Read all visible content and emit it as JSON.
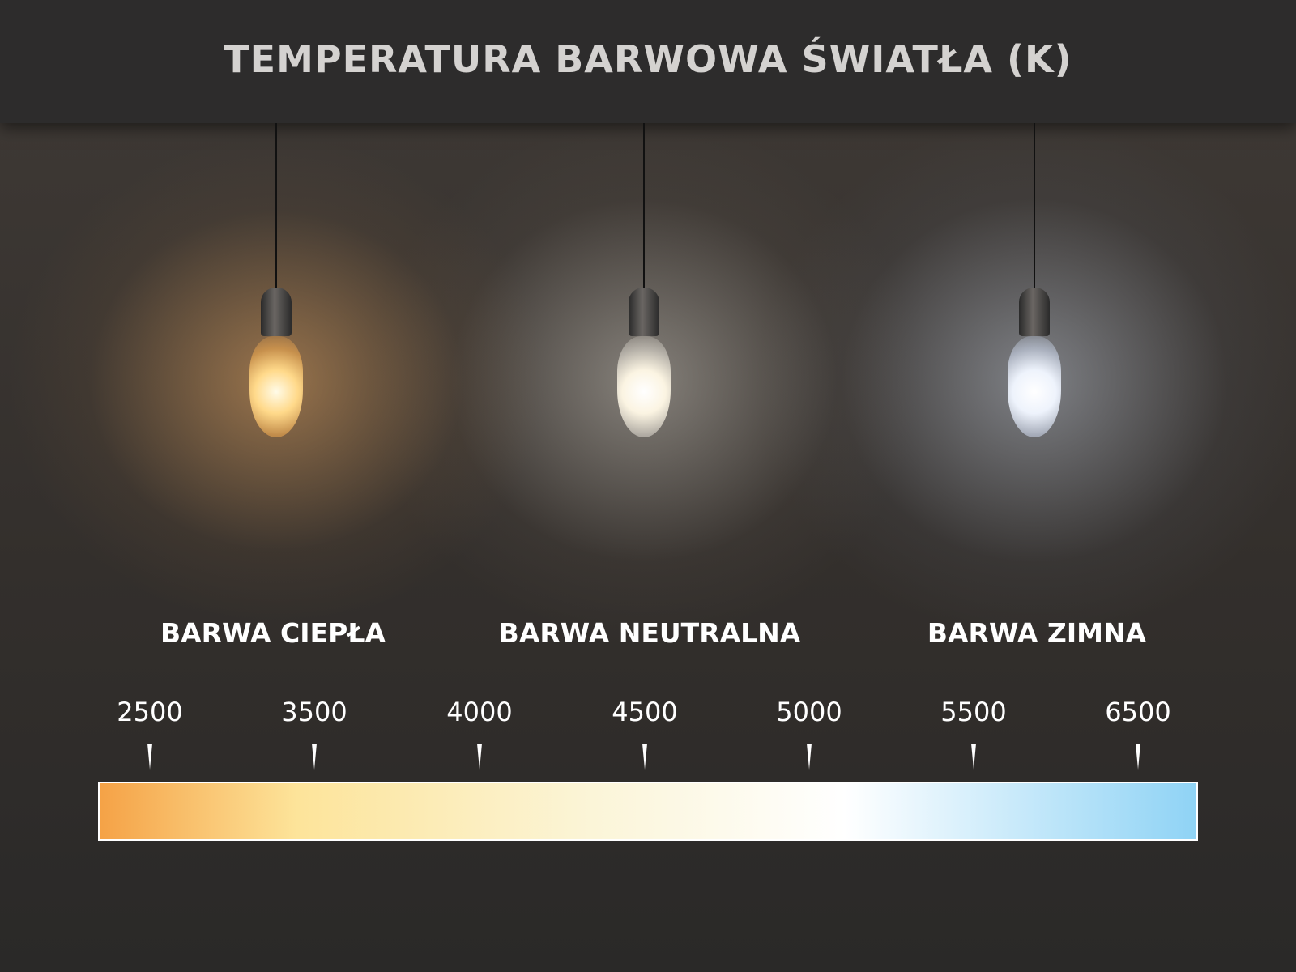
{
  "title": "TEMPERATURA BARWOWA ŚWIATŁA (K)",
  "categories": [
    {
      "label": "BARWA CIEPŁA",
      "glow": "#f7b466"
    },
    {
      "label": "BARWA NEUTRALNA",
      "glow": "#fdf6e4"
    },
    {
      "label": "BARWA ZIMNA",
      "glow": "#e6eefb"
    }
  ],
  "scale": {
    "ticks": [
      "2500",
      "3500",
      "4000",
      "4500",
      "5000",
      "5500",
      "6500"
    ],
    "gradient_colors": [
      "#f5a246",
      "#fde49a",
      "#fbf5d8",
      "#ffffff",
      "#8fd3f5"
    ]
  }
}
